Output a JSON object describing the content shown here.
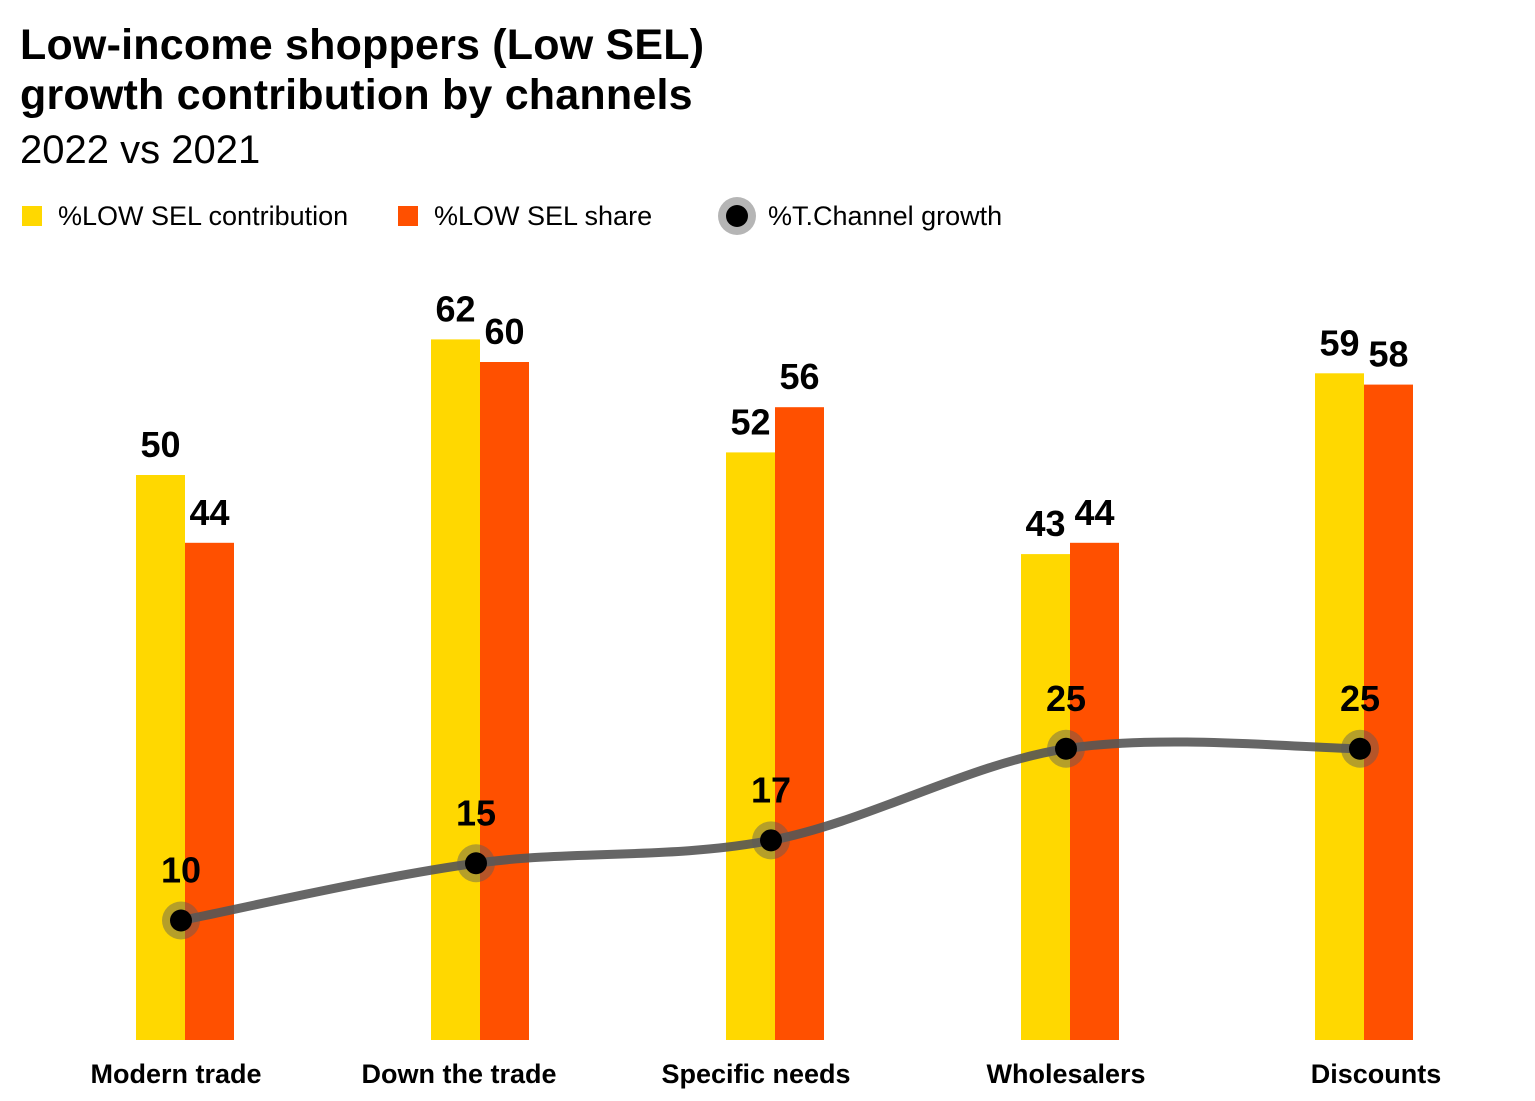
{
  "title_line1": "Low-income shoppers (Low SEL)",
  "title_line2": "growth contribution by channels",
  "subtitle": "2022 vs 2021",
  "colors": {
    "contribution": "#FFD800",
    "share": "#FF5000",
    "growth_line": "#555555",
    "growth_dot": "#000000"
  },
  "chart_data": {
    "type": "bar",
    "categories": [
      "Modern trade",
      "Down the trade",
      "Specific needs",
      "Wholesalers",
      "Discounts"
    ],
    "series": [
      {
        "name": "%LOW SEL contribution",
        "type": "bar",
        "values": [
          50,
          62,
          52,
          43,
          59
        ]
      },
      {
        "name": "%LOW SEL share",
        "type": "bar",
        "values": [
          44,
          60,
          56,
          44,
          58
        ]
      },
      {
        "name": "%T.Channel growth",
        "type": "line",
        "values": [
          10,
          15,
          17,
          25,
          25
        ]
      }
    ],
    "legend": "top-left",
    "grid": false,
    "ylim": [
      0,
      70
    ]
  }
}
